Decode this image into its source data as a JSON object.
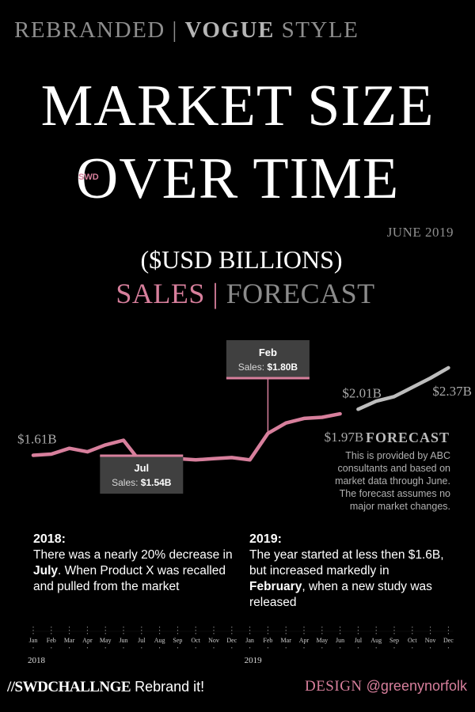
{
  "header": {
    "top_left": "REBRANDED",
    "top_sep": " | ",
    "top_bold": "VOGUE",
    "top_right": " STYLE",
    "title_line1": "MARKET SIZE",
    "title_line2": "OVER TIME",
    "badge": "SWD",
    "date": "JUNE 2019",
    "unit": "($USD BILLIONS)",
    "sales_label": "SALES",
    "sf_sep": " | ",
    "forecast_label": "FORECAST"
  },
  "forecast_note": {
    "title": "FORECAST",
    "body": "This is provided by ABC consultants and based on market data through June. The forecast assumes no major market changes."
  },
  "notes": {
    "y2018_title": "2018:",
    "y2018_b1": "There was a nearly 20% decrease in ",
    "y2018_em": "July",
    "y2018_b2": ". When Product X was recalled and pulled from the market",
    "y2019_title": "2019:",
    "y2019_b1": "The year started at less then $1.6B, but increased markedly in ",
    "y2019_em": "February",
    "y2019_b2": ", when a new study was released"
  },
  "footer": {
    "hashtag": "//SWDCHALLNGE",
    "message": " Rebrand it!",
    "design": "DESIGN",
    "handle": " @greenynorfolk"
  },
  "colors": {
    "sales": "#d77f9c",
    "forecast": "#bdbdbd",
    "background": "#000000",
    "callout_bg": "#404040"
  },
  "chart_data": {
    "type": "line",
    "categories": [
      "Jan",
      "Feb",
      "Mar",
      "Apr",
      "May",
      "Jun",
      "Jul",
      "Aug",
      "Sep",
      "Oct",
      "Nov",
      "Dec",
      "Jan",
      "Feb",
      "Mar",
      "Apr",
      "May",
      "Jun",
      "Jul",
      "Aug",
      "Sep",
      "Oct",
      "Nov",
      "Dec"
    ],
    "years": [
      {
        "label": "2018",
        "start_index": 0
      },
      {
        "label": "2019",
        "start_index": 12
      }
    ],
    "series": [
      {
        "name": "SALES",
        "values": [
          1.61,
          1.62,
          1.67,
          1.64,
          1.7,
          1.74,
          1.54,
          1.55,
          1.58,
          1.57,
          1.58,
          1.59,
          1.57,
          1.8,
          1.89,
          1.93,
          1.94,
          1.97,
          null,
          null,
          null,
          null,
          null,
          null
        ]
      },
      {
        "name": "FORECAST",
        "values": [
          null,
          null,
          null,
          null,
          null,
          null,
          null,
          null,
          null,
          null,
          null,
          null,
          null,
          null,
          null,
          null,
          null,
          null,
          2.01,
          2.08,
          2.12,
          2.2,
          2.28,
          2.37
        ]
      }
    ],
    "value_labels": [
      {
        "text": "$1.61B",
        "index": 0,
        "series": 0,
        "side": "above"
      },
      {
        "text": "$1.97B",
        "index": 17,
        "series": 0,
        "side": "below"
      },
      {
        "text": "$2.01B",
        "index": 18,
        "series": 1,
        "side": "above"
      },
      {
        "text": "$2.37B",
        "index": 23,
        "series": 1,
        "side": "below"
      }
    ],
    "callouts": [
      {
        "index": 13,
        "month": "Feb",
        "label": "Sales: ",
        "value": "$1.80B",
        "side": "above"
      },
      {
        "index": 6,
        "month": "Jul",
        "label": "Sales: ",
        "value": "$1.54B",
        "side": "below"
      }
    ],
    "ylim": [
      1.4,
      2.5
    ],
    "grid": false
  }
}
